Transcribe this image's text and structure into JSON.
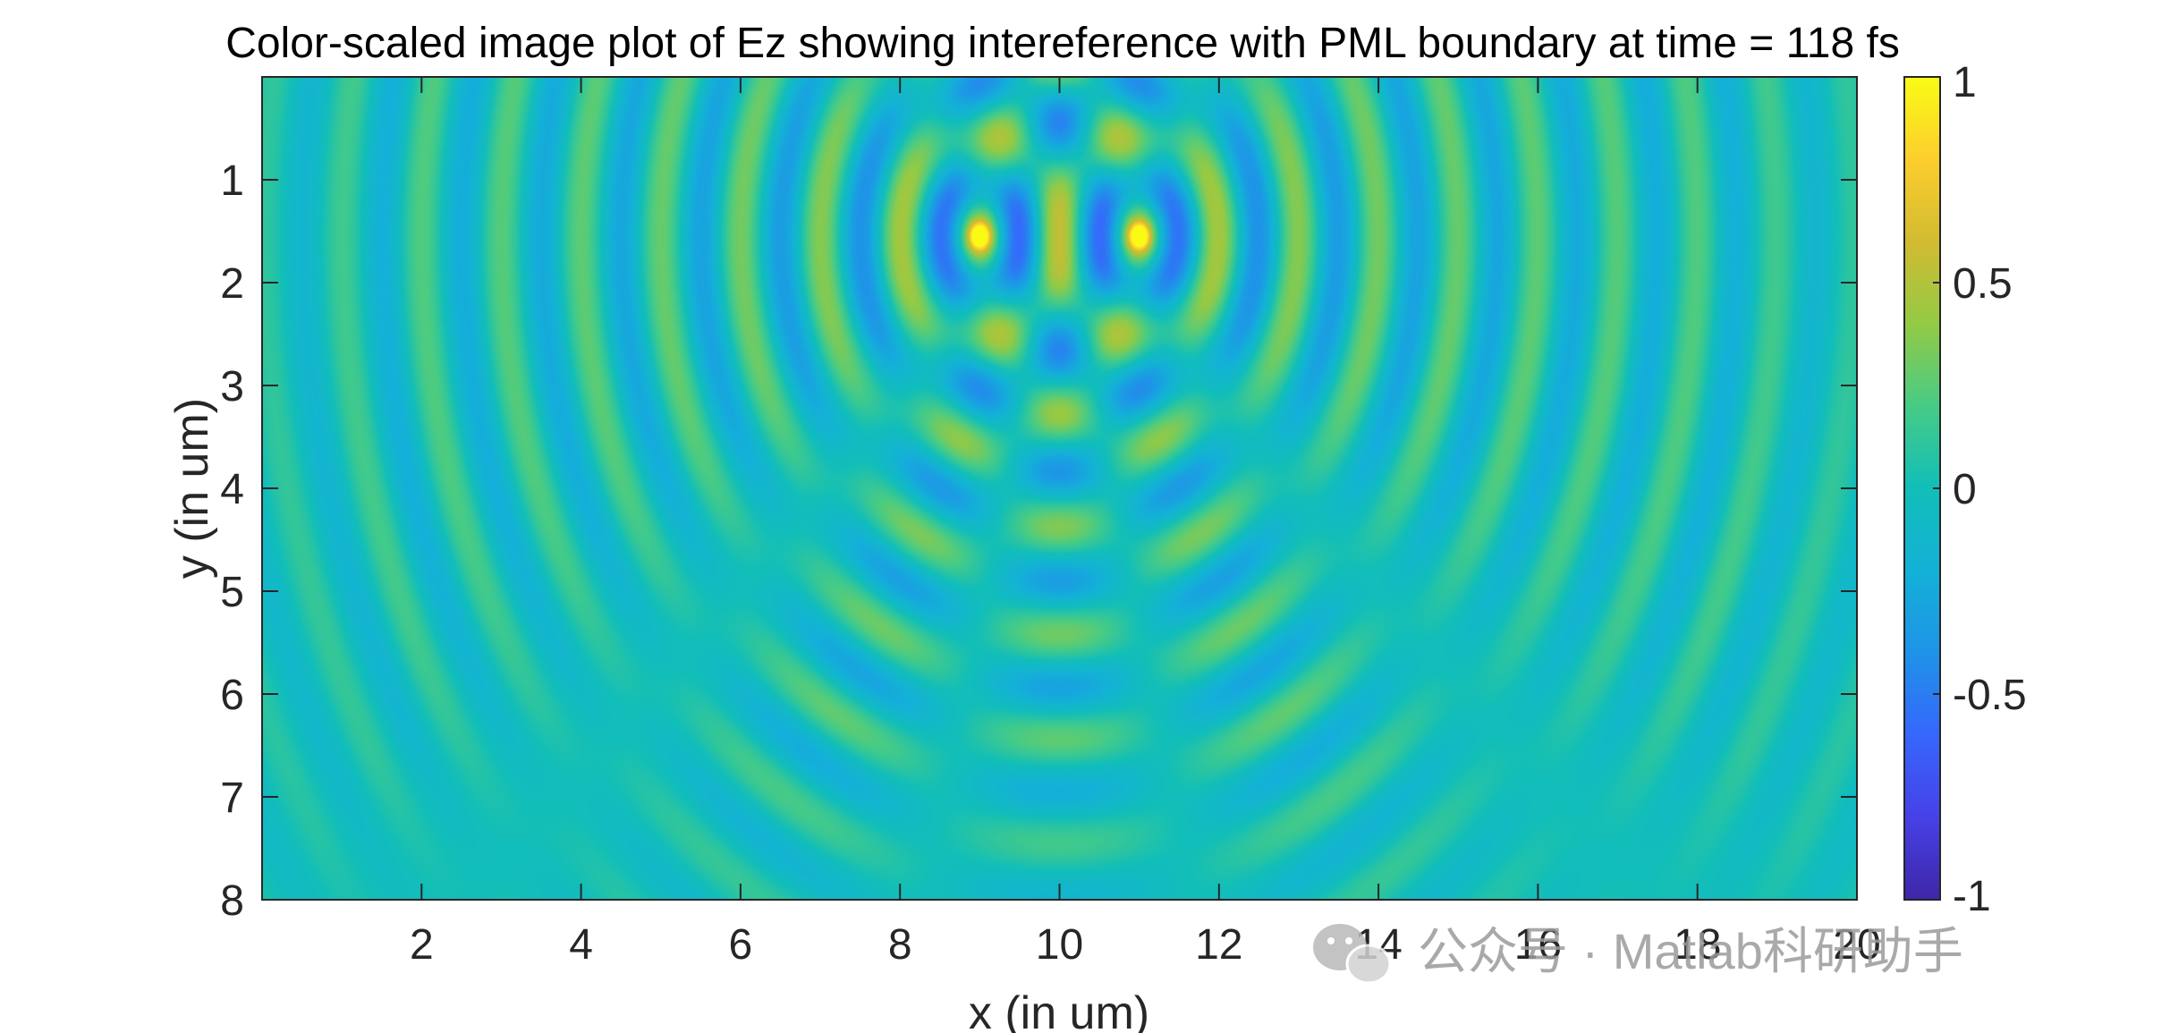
{
  "chart_data": {
    "type": "heatmap",
    "title": "Color-scaled image plot of Ez showing intereference with PML boundary at time = 118 fs",
    "xlabel": "x (in um)",
    "ylabel": "y (in um)",
    "xlim": [
      0,
      20
    ],
    "ylim": [
      0,
      8
    ],
    "y_reversed": true,
    "x_ticks": [
      2,
      4,
      6,
      8,
      10,
      12,
      14,
      16,
      18,
      20
    ],
    "y_ticks": [
      1,
      2,
      3,
      4,
      5,
      6,
      7,
      8
    ],
    "colorbar": {
      "colormap": "parula",
      "clim": [
        -1,
        1
      ],
      "ticks": [
        1,
        0.5,
        0,
        -0.5,
        -1
      ],
      "tick_labels": [
        "1",
        "0.5",
        "0",
        "-0.5",
        "-1"
      ]
    },
    "sources": [
      {
        "x": 9,
        "y": 1.55,
        "peak_value": 0.9
      },
      {
        "x": 11,
        "y": 1.55,
        "peak_value": 0.9
      }
    ],
    "wave": {
      "wavelength_um": 1.0,
      "background_value": 0.0
    }
  },
  "watermark": {
    "text": "公众号 · Matlab科研助手",
    "icon": "wechat-icon"
  }
}
